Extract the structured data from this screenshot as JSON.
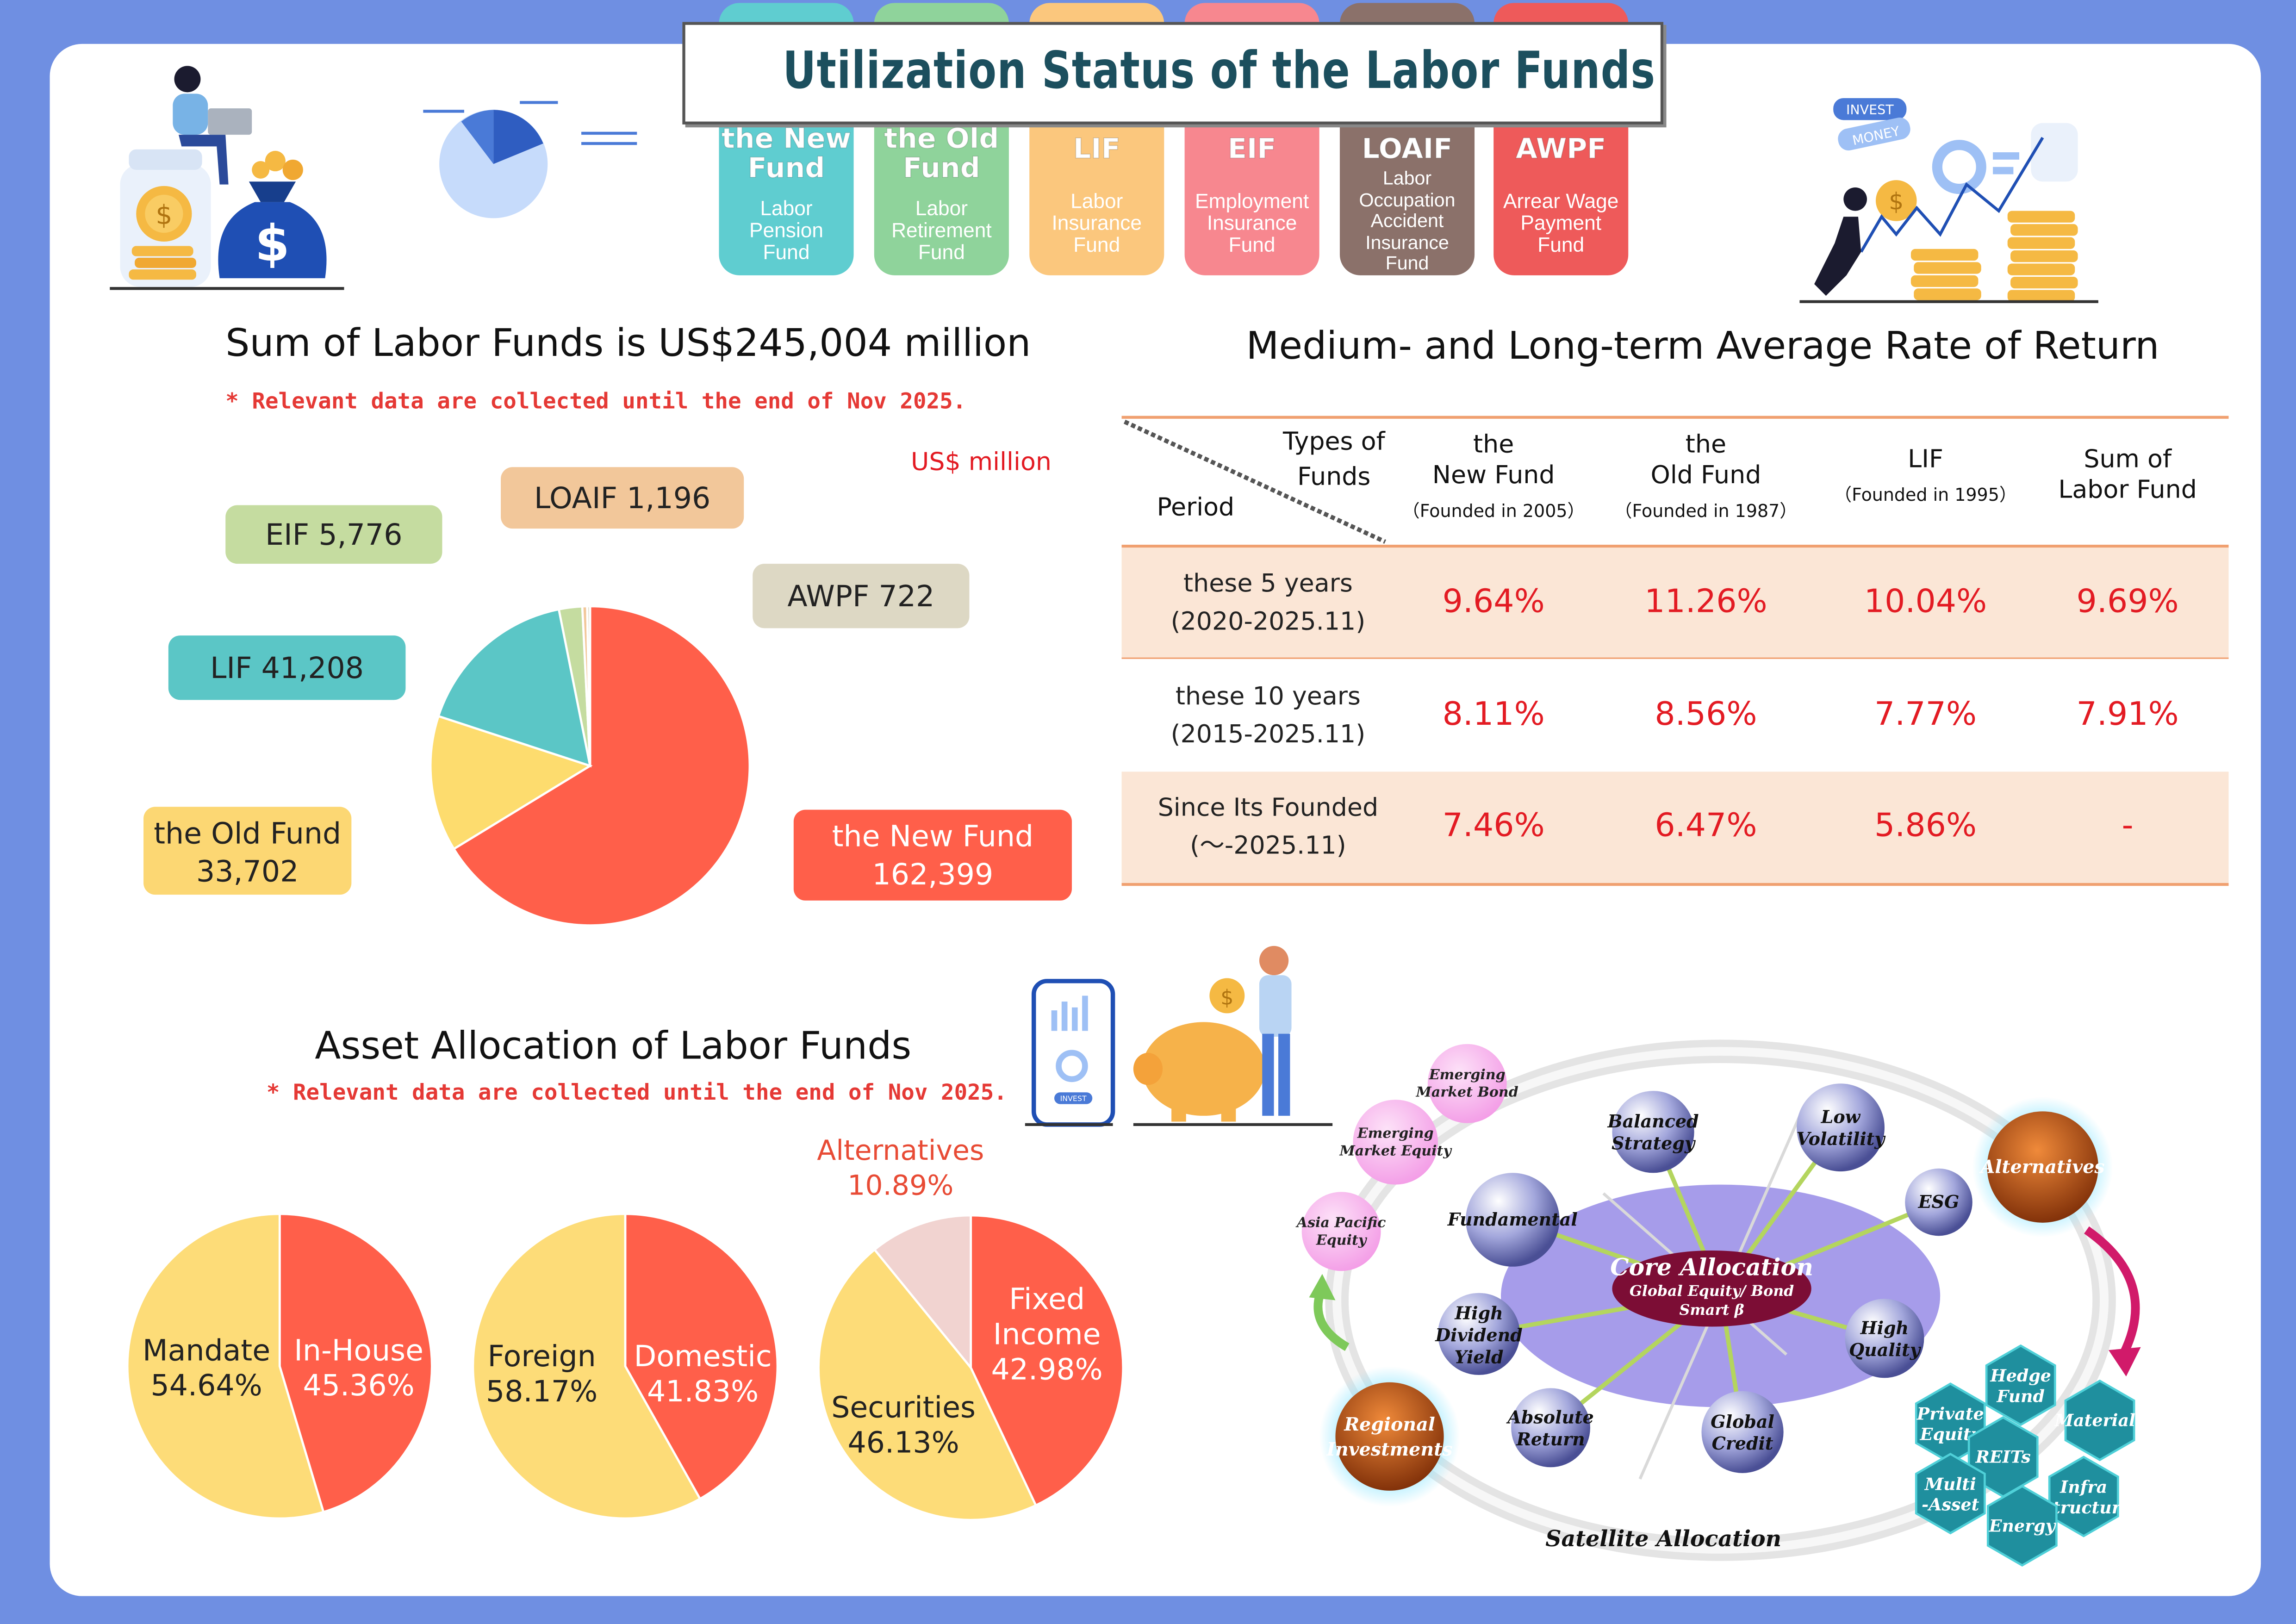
{
  "title": "Utilization Status of the Labor Funds",
  "tabs": [
    {
      "abbr": [
        "the New",
        "Fund"
      ],
      "full": [
        "Labor",
        "Pension",
        "Fund"
      ],
      "color": "#5fcdd0"
    },
    {
      "abbr": [
        "the Old",
        "Fund"
      ],
      "full": [
        "Labor",
        "Retirement",
        "Fund"
      ],
      "color": "#8fd39b"
    },
    {
      "abbr": [
        "LIF"
      ],
      "full": [
        "Labor",
        "Insurance",
        "Fund"
      ],
      "color": "#fbc77d"
    },
    {
      "abbr": [
        "EIF"
      ],
      "full": [
        "Employment",
        "Insurance",
        "Fund"
      ],
      "color": "#f7878f"
    },
    {
      "abbr": [
        "LOAIF"
      ],
      "full": [
        "Labor",
        "Occupation",
        "Accident",
        "Insurance",
        "Fund"
      ],
      "color": "#8b716a"
    },
    {
      "abbr": [
        "AWPF"
      ],
      "full": [
        "Arrear Wage",
        "Payment",
        "Fund"
      ],
      "color": "#ee5a5a"
    }
  ],
  "icons": [
    "woman-laptop-coins-icon",
    "pie-chart-icon",
    "invest-money-growth-icon",
    "phone-piggy-bank-icon"
  ],
  "decor_labels": {
    "invest": "INVEST",
    "money": "MONEY",
    "phone": "INVEST"
  },
  "sum": {
    "heading": "Sum of Labor Funds is US$245,004 million",
    "note": "* Relevant data are collected until the end of Nov 2025.",
    "unit": "US$ million"
  },
  "chart_data": [
    {
      "type": "pie",
      "categories": [
        "the New Fund",
        "the Old Fund",
        "LIF",
        "EIF",
        "LOAIF",
        "AWPF"
      ],
      "values": [
        162399,
        33702,
        41208,
        5776,
        1196,
        722
      ],
      "value_labels": [
        "162,399",
        "33,702",
        "41,208",
        "5,776",
        "1,196",
        "722"
      ],
      "colors": [
        "#ff5f4a",
        "#fddc6e",
        "#5bc6c6",
        "#c5dca0",
        "#f2c79a",
        "#ddd8c4"
      ],
      "title": "Sum of Labor Funds is US$245,004 million"
    },
    {
      "type": "pie",
      "categories": [
        "In-House",
        "Mandate"
      ],
      "values": [
        45.36,
        54.64
      ],
      "value_labels": [
        "45.36%",
        "54.64%"
      ],
      "colors": [
        "#ff5f4a",
        "#fddc78"
      ]
    },
    {
      "type": "pie",
      "categories": [
        "Domestic",
        "Foreign"
      ],
      "values": [
        41.83,
        58.17
      ],
      "value_labels": [
        "41.83%",
        "58.17%"
      ],
      "colors": [
        "#ff5f4a",
        "#fddc78"
      ]
    },
    {
      "type": "pie",
      "categories": [
        "Fixed Income",
        "Securities",
        "Alternatives"
      ],
      "values": [
        42.98,
        46.13,
        10.89
      ],
      "value_labels": [
        "42.98%",
        "46.13%",
        "10.89%"
      ],
      "colors": [
        "#ff5f4a",
        "#fddc78",
        "#f1d3d0"
      ]
    },
    {
      "type": "table",
      "title": "Medium- and Long-term Average Rate of Return",
      "corner": {
        "top": [
          "Types of",
          "Funds"
        ],
        "bottom": "Period"
      },
      "columns": [
        {
          "lines": [
            "the",
            "New Fund"
          ],
          "sub": "（Founded in 2005）"
        },
        {
          "lines": [
            "the",
            "Old Fund"
          ],
          "sub": "（Founded in 1987）"
        },
        {
          "lines": [
            "LIF"
          ],
          "sub": "（Founded in 1995）"
        },
        {
          "lines": [
            "Sum of",
            "Labor Fund"
          ],
          "sub": ""
        }
      ],
      "rows": [
        {
          "period": [
            "these 5 years",
            "(2020-2025.11)"
          ],
          "values": [
            "9.64%",
            "11.26%",
            "10.04%",
            "9.69%"
          ]
        },
        {
          "period": [
            "these 10 years",
            "(2015-2025.11)"
          ],
          "values": [
            "8.11%",
            "8.56%",
            "7.77%",
            "7.91%"
          ]
        },
        {
          "period": [
            "Since Its Founded",
            "(～-2025.11)"
          ],
          "values": [
            "7.46%",
            "6.47%",
            "5.86%",
            "-"
          ]
        }
      ]
    }
  ],
  "asset": {
    "heading": "Asset Allocation of Labor Funds",
    "note": "* Relevant data are collected until the end of Nov 2025."
  },
  "allocation": {
    "core": {
      "title": "Core Allocation",
      "sub": [
        "Global Equity/ Bond",
        "Smart β"
      ]
    },
    "satellite_label": "Satellite Allocation",
    "spheres": [
      {
        "name": "balanced",
        "lines": [
          "Balanced",
          "Strategy"
        ]
      },
      {
        "name": "low-volatility",
        "lines": [
          "Low",
          "Volatility"
        ]
      },
      {
        "name": "esg",
        "lines": [
          "ESG"
        ]
      },
      {
        "name": "fundamental",
        "lines": [
          "Fundamental"
        ]
      },
      {
        "name": "high-dividend",
        "lines": [
          "High",
          "Dividend",
          "Yield"
        ]
      },
      {
        "name": "high-quality",
        "lines": [
          "High",
          "Quality"
        ]
      },
      {
        "name": "absolute-return",
        "lines": [
          "Absolute",
          "Return"
        ]
      },
      {
        "name": "global-credit",
        "lines": [
          "Global",
          "Credit"
        ]
      }
    ],
    "regional": {
      "label": [
        "Regional",
        "Investments"
      ],
      "items": [
        {
          "name": "emerging-market-bond",
          "lines": [
            "Emerging",
            "Market Bond"
          ]
        },
        {
          "name": "emerging-market-equity",
          "lines": [
            "Emerging",
            "Market Equity"
          ]
        },
        {
          "name": "asia-pacific-equity",
          "lines": [
            "Asia Pacific",
            "Equity"
          ]
        }
      ]
    },
    "alternatives": {
      "label": "Alternatives",
      "hexes": [
        {
          "name": "hedge-fund",
          "lines": [
            "Hedge",
            "Fund"
          ]
        },
        {
          "name": "private-equity",
          "lines": [
            "Private",
            "Equity"
          ]
        },
        {
          "name": "materials",
          "lines": [
            "Materials"
          ]
        },
        {
          "name": "reits",
          "lines": [
            "REITs"
          ]
        },
        {
          "name": "multi-asset",
          "lines": [
            "Multi",
            "-Asset"
          ]
        },
        {
          "name": "infrastructure",
          "lines": [
            "Infra",
            "-structure"
          ]
        },
        {
          "name": "energy",
          "lines": [
            "Energy"
          ]
        }
      ]
    }
  }
}
